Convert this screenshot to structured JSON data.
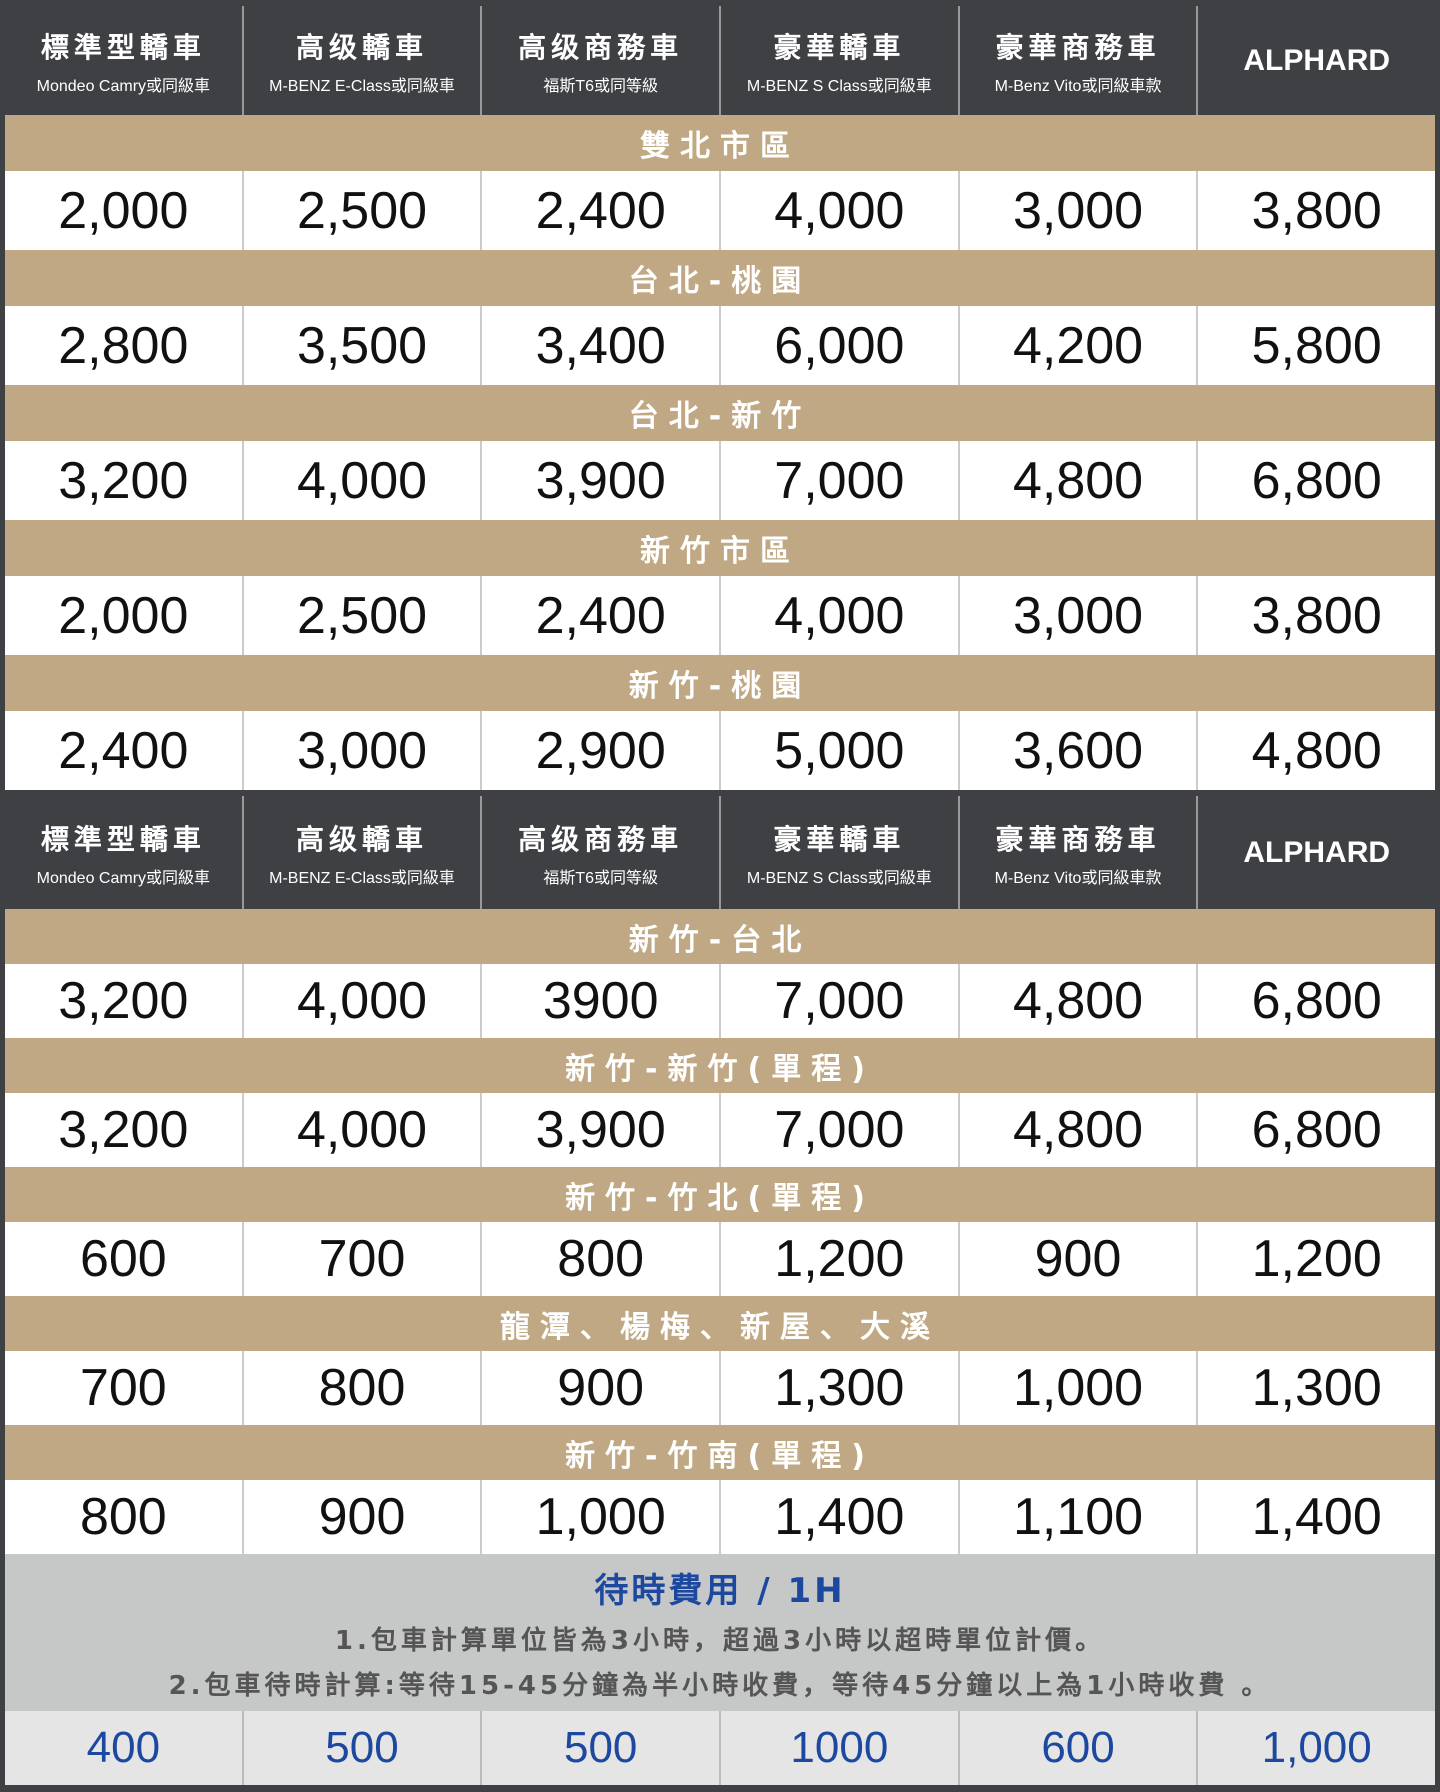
{
  "columns": [
    {
      "title": "標準型轎車",
      "sub": "Mondeo Camry或同級車"
    },
    {
      "title": "高级轎車",
      "sub": "M-BENZ E-Class或同級車"
    },
    {
      "title": "高级商務車",
      "sub": "福斯T6或同等級"
    },
    {
      "title": "豪華轎車",
      "sub": "M-BENZ S Class或同級車"
    },
    {
      "title": "豪華商務車",
      "sub": "M-Benz Vito或同級車款"
    },
    {
      "title": "ALPHARD",
      "sub": ""
    }
  ],
  "table1": [
    {
      "route": "雙北市區",
      "prices": [
        "2,000",
        "2,500",
        "2,400",
        "4,000",
        "3,000",
        "3,800"
      ]
    },
    {
      "route": "台北-桃園",
      "prices": [
        "2,800",
        "3,500",
        "3,400",
        "6,000",
        "4,200",
        "5,800"
      ]
    },
    {
      "route": "台北-新竹",
      "prices": [
        "3,200",
        "4,000",
        "3,900",
        "7,000",
        "4,800",
        "6,800"
      ]
    },
    {
      "route": "新竹市區",
      "prices": [
        "2,000",
        "2,500",
        "2,400",
        "4,000",
        "3,000",
        "3,800"
      ]
    },
    {
      "route": "新竹-桃園",
      "prices": [
        "2,400",
        "3,000",
        "2,900",
        "5,000",
        "3,600",
        "4,800"
      ]
    }
  ],
  "table2": [
    {
      "route": "新竹-台北",
      "prices": [
        "3,200",
        "4,000",
        "3900",
        "7,000",
        "4,800",
        "6,800"
      ]
    },
    {
      "route": "新竹-新竹(單程)",
      "prices": [
        "3,200",
        "4,000",
        "3,900",
        "7,000",
        "4,800",
        "6,800"
      ]
    },
    {
      "route": "新竹-竹北(單程)",
      "prices": [
        "600",
        "700",
        "800",
        "1,200",
        "900",
        "1,200"
      ]
    },
    {
      "route": "龍潭、楊梅、新屋、大溪",
      "prices": [
        "700",
        "800",
        "900",
        "1,300",
        "1,000",
        "1,300"
      ]
    },
    {
      "route": "新竹-竹南(單程)",
      "prices": [
        "800",
        "900",
        "1,000",
        "1,400",
        "1,100",
        "1,400"
      ]
    }
  ],
  "waiting": {
    "title": "待時費用 / 1H",
    "notes": [
      "1.包車計算單位皆為3小時，超過3小時以超時單位計價。",
      "2.包車待時計算:等待15-45分鐘為半小時收費，等待45分鐘以上為1小時收費 。"
    ],
    "prices": [
      "400",
      "500",
      "500",
      "1000",
      "600",
      "1,000"
    ]
  },
  "colors": {
    "header": "#3f4044",
    "band": "#bfa883",
    "accent": "#1d48a0",
    "note_bg": "#c6c7c7"
  }
}
